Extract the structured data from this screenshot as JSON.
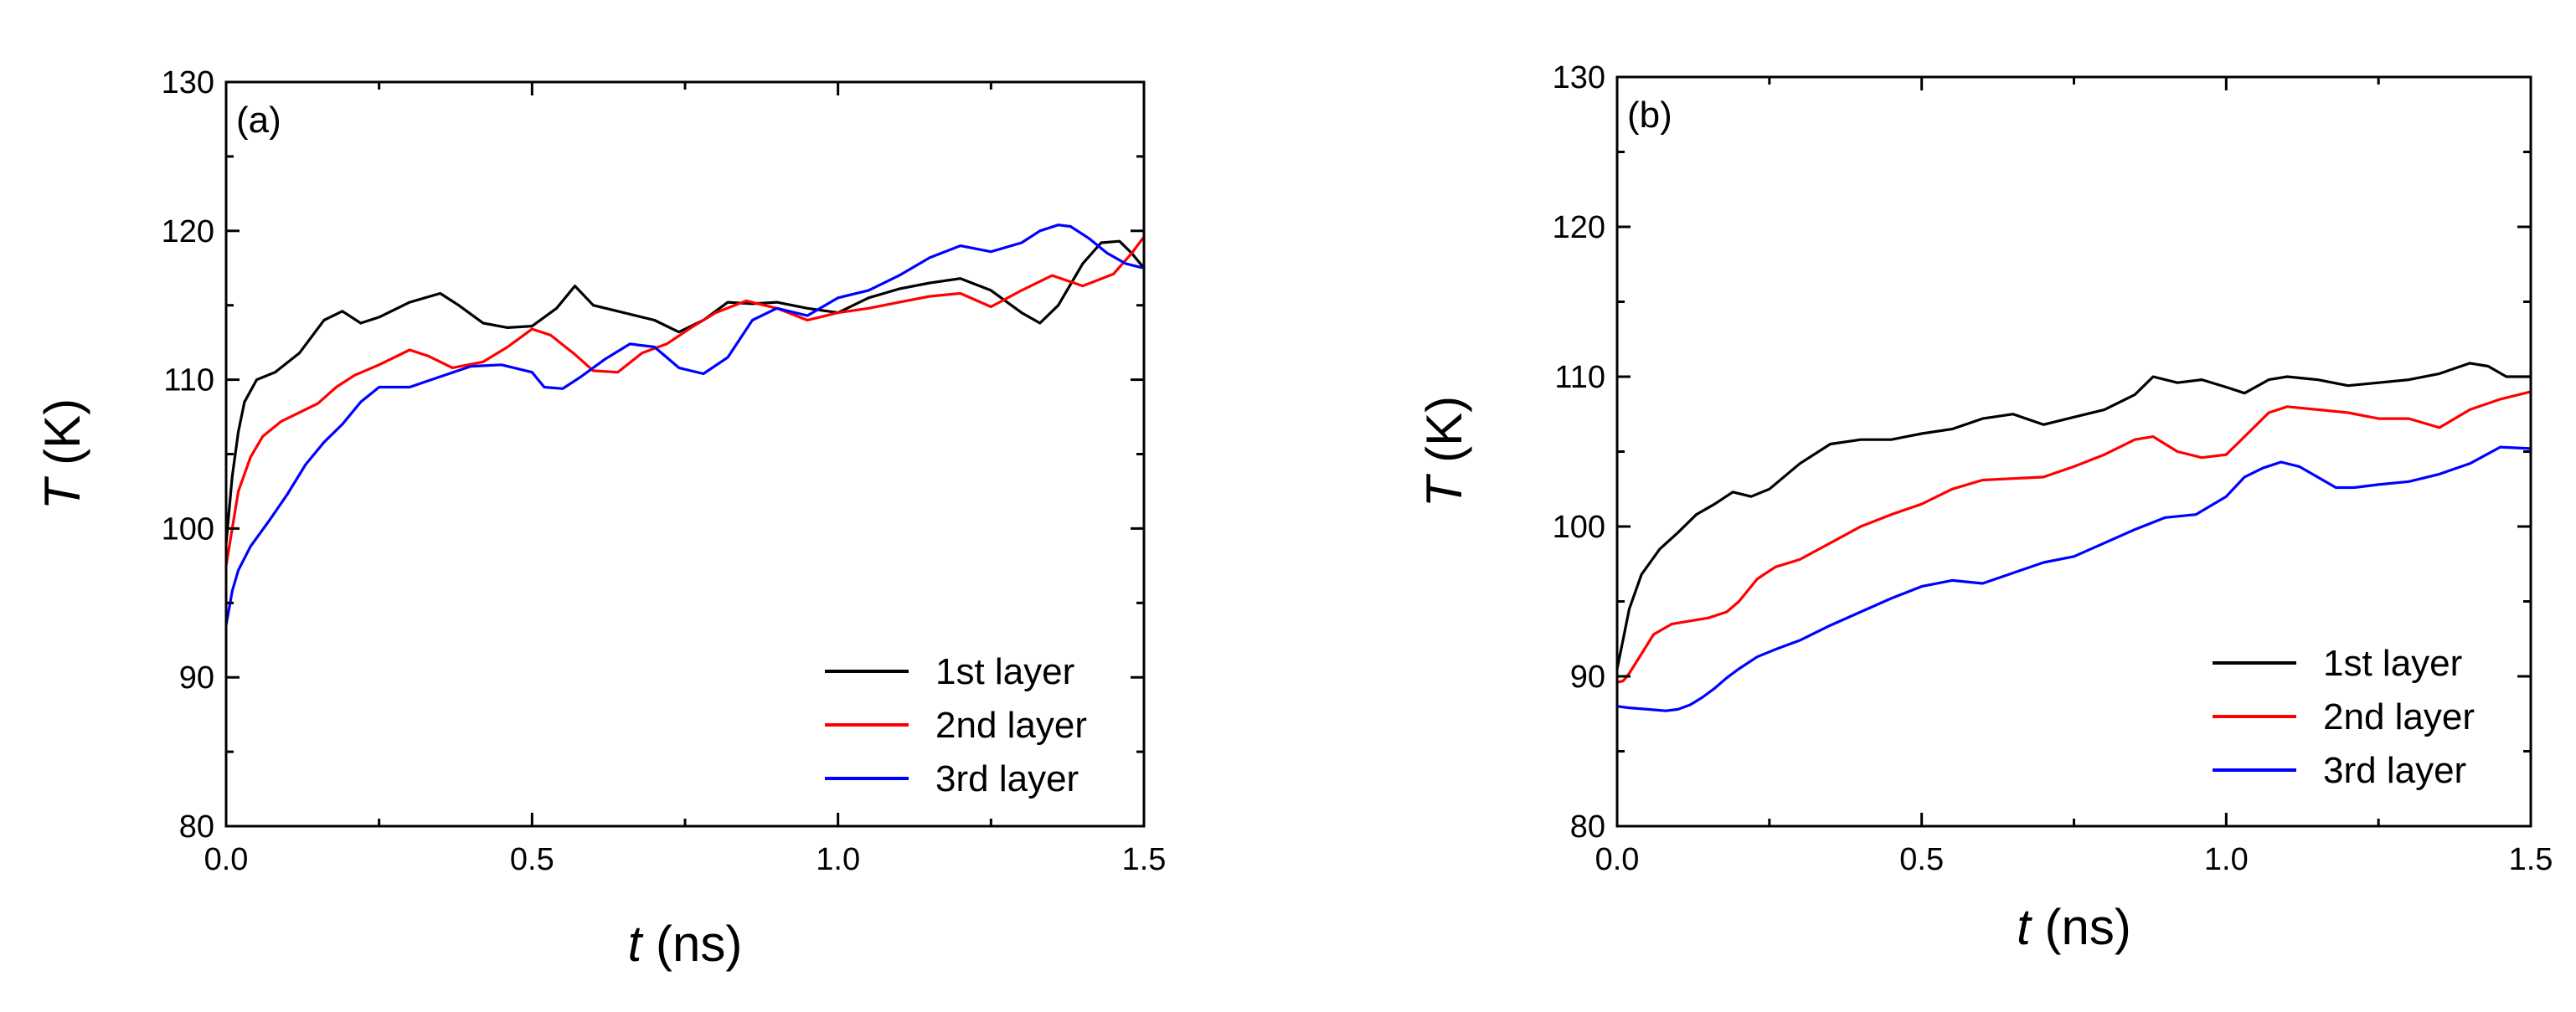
{
  "chart_data": [
    {
      "type": "line",
      "panel_label": "(a)",
      "xlabel_var": "t",
      "xlabel_unit": " (ns)",
      "ylabel_var": "T",
      "ylabel_unit": " (K)",
      "xlim": [
        0,
        1.5
      ],
      "ylim": [
        80,
        130
      ],
      "xticks": [
        0.0,
        0.5,
        1.0,
        1.5
      ],
      "xtick_labels": [
        "0.0",
        "0.5",
        "1.0",
        "1.5"
      ],
      "yticks": [
        80,
        90,
        100,
        110,
        120,
        130
      ],
      "ytick_labels": [
        "80",
        "90",
        "100",
        "110",
        "120",
        "130"
      ],
      "legend_position": "bottom-right",
      "grid": false,
      "series": [
        {
          "name": "1st layer",
          "color": "#000000",
          "x": [
            0,
            0.01,
            0.02,
            0.03,
            0.05,
            0.08,
            0.12,
            0.16,
            0.19,
            0.22,
            0.25,
            0.3,
            0.35,
            0.38,
            0.42,
            0.46,
            0.5,
            0.54,
            0.57,
            0.6,
            0.65,
            0.7,
            0.74,
            0.78,
            0.82,
            0.86,
            0.9,
            0.95,
            1.0,
            1.05,
            1.1,
            1.15,
            1.2,
            1.25,
            1.3,
            1.33,
            1.36,
            1.4,
            1.43,
            1.46,
            1.48,
            1.5
          ],
          "y": [
            99,
            103.5,
            106.5,
            108.5,
            110,
            110.5,
            111.8,
            114,
            114.6,
            113.8,
            114.2,
            115.2,
            115.8,
            115,
            113.8,
            113.5,
            113.6,
            114.8,
            116.3,
            115,
            114.5,
            114,
            113.2,
            114,
            115.2,
            115.1,
            115.2,
            114.8,
            114.5,
            115.5,
            116.1,
            116.5,
            116.8,
            116,
            114.5,
            113.8,
            115,
            117.8,
            119.2,
            119.3,
            118.5,
            117.5
          ]
        },
        {
          "name": "2nd layer",
          "color": "#ff0000",
          "x": [
            0,
            0.01,
            0.02,
            0.04,
            0.06,
            0.09,
            0.12,
            0.15,
            0.18,
            0.21,
            0.25,
            0.3,
            0.33,
            0.37,
            0.42,
            0.46,
            0.5,
            0.53,
            0.57,
            0.6,
            0.64,
            0.68,
            0.72,
            0.76,
            0.8,
            0.85,
            0.9,
            0.95,
            1.0,
            1.05,
            1.1,
            1.15,
            1.2,
            1.25,
            1.3,
            1.35,
            1.4,
            1.45,
            1.48,
            1.5
          ],
          "y": [
            97.5,
            100,
            102.5,
            104.8,
            106.2,
            107.2,
            107.8,
            108.4,
            109.5,
            110.3,
            111,
            112,
            111.6,
            110.8,
            111.2,
            112.2,
            113.4,
            113,
            111.7,
            110.6,
            110.5,
            111.8,
            112.4,
            113.5,
            114.5,
            115.3,
            114.8,
            114,
            114.5,
            114.8,
            115.2,
            115.6,
            115.8,
            114.9,
            116,
            117,
            116.3,
            117.1,
            118.5,
            119.6
          ]
        },
        {
          "name": "3rd layer",
          "color": "#0000ff",
          "x": [
            0,
            0.01,
            0.02,
            0.04,
            0.07,
            0.1,
            0.13,
            0.16,
            0.19,
            0.22,
            0.25,
            0.3,
            0.35,
            0.4,
            0.45,
            0.5,
            0.52,
            0.55,
            0.58,
            0.62,
            0.66,
            0.7,
            0.74,
            0.78,
            0.82,
            0.86,
            0.9,
            0.95,
            1.0,
            1.05,
            1.1,
            1.15,
            1.2,
            1.25,
            1.3,
            1.33,
            1.36,
            1.38,
            1.41,
            1.44,
            1.47,
            1.5
          ],
          "y": [
            93.5,
            95.8,
            97.2,
            98.8,
            100.5,
            102.3,
            104.3,
            105.8,
            107,
            108.5,
            109.5,
            109.5,
            110.2,
            110.9,
            111,
            110.5,
            109.5,
            109.4,
            110.2,
            111.4,
            112.4,
            112.2,
            110.8,
            110.4,
            111.5,
            114,
            114.8,
            114.3,
            115.5,
            116,
            117,
            118.2,
            119,
            118.6,
            119.2,
            120,
            120.4,
            120.3,
            119.5,
            118.5,
            117.8,
            117.5
          ]
        }
      ]
    },
    {
      "type": "line",
      "panel_label": "(b)",
      "xlabel_var": "t",
      "xlabel_unit": " (ns)",
      "ylabel_var": "T",
      "ylabel_unit": " (K)",
      "xlim": [
        0,
        1.5
      ],
      "ylim": [
        80,
        130
      ],
      "xticks": [
        0.0,
        0.5,
        1.0,
        1.5
      ],
      "xtick_labels": [
        "0.0",
        "0.5",
        "1.0",
        "1.5"
      ],
      "yticks": [
        80,
        90,
        100,
        110,
        120,
        130
      ],
      "ytick_labels": [
        "80",
        "90",
        "100",
        "110",
        "120",
        "130"
      ],
      "legend_position": "bottom-right",
      "grid": false,
      "series": [
        {
          "name": "1st layer",
          "color": "#000000",
          "x": [
            0,
            0.01,
            0.02,
            0.04,
            0.07,
            0.1,
            0.13,
            0.16,
            0.19,
            0.22,
            0.25,
            0.3,
            0.35,
            0.4,
            0.45,
            0.5,
            0.55,
            0.6,
            0.65,
            0.7,
            0.75,
            0.8,
            0.85,
            0.88,
            0.92,
            0.96,
            1.0,
            1.03,
            1.07,
            1.1,
            1.15,
            1.2,
            1.25,
            1.3,
            1.35,
            1.4,
            1.43,
            1.46,
            1.5
          ],
          "y": [
            90.5,
            92.5,
            94.5,
            96.8,
            98.5,
            99.6,
            100.8,
            101.5,
            102.3,
            102,
            102.5,
            104.2,
            105.5,
            105.8,
            105.8,
            106.2,
            106.5,
            107.2,
            107.5,
            106.8,
            107.3,
            107.8,
            108.8,
            110,
            109.6,
            109.8,
            109.3,
            108.9,
            109.8,
            110,
            109.8,
            109.4,
            109.6,
            109.8,
            110.2,
            110.9,
            110.7,
            110,
            110
          ]
        },
        {
          "name": "2nd layer",
          "color": "#ff0000",
          "x": [
            0,
            0.01,
            0.02,
            0.04,
            0.06,
            0.09,
            0.12,
            0.15,
            0.18,
            0.2,
            0.23,
            0.26,
            0.3,
            0.35,
            0.4,
            0.45,
            0.5,
            0.55,
            0.6,
            0.65,
            0.7,
            0.75,
            0.8,
            0.85,
            0.88,
            0.92,
            0.96,
            1.0,
            1.03,
            1.07,
            1.1,
            1.15,
            1.2,
            1.25,
            1.3,
            1.35,
            1.4,
            1.45,
            1.5
          ],
          "y": [
            89.6,
            89.7,
            90.2,
            91.5,
            92.8,
            93.5,
            93.7,
            93.9,
            94.3,
            95,
            96.5,
            97.3,
            97.8,
            98.9,
            100,
            100.8,
            101.5,
            102.5,
            103.1,
            103.2,
            103.3,
            104,
            104.8,
            105.8,
            106,
            105,
            104.6,
            104.8,
            106,
            107.6,
            108,
            107.8,
            107.6,
            107.2,
            107.2,
            106.6,
            107.8,
            108.5,
            109
          ]
        },
        {
          "name": "3rd layer",
          "color": "#0000ff",
          "x": [
            0,
            0.02,
            0.05,
            0.08,
            0.1,
            0.12,
            0.14,
            0.16,
            0.18,
            0.2,
            0.23,
            0.26,
            0.3,
            0.35,
            0.4,
            0.45,
            0.5,
            0.55,
            0.6,
            0.65,
            0.7,
            0.75,
            0.8,
            0.85,
            0.9,
            0.95,
            1.0,
            1.03,
            1.06,
            1.09,
            1.12,
            1.15,
            1.18,
            1.21,
            1.25,
            1.3,
            1.35,
            1.4,
            1.45,
            1.5
          ],
          "y": [
            88,
            87.9,
            87.8,
            87.7,
            87.8,
            88.1,
            88.6,
            89.2,
            89.9,
            90.5,
            91.3,
            91.8,
            92.4,
            93.4,
            94.3,
            95.2,
            96,
            96.4,
            96.2,
            96.9,
            97.6,
            98,
            98.9,
            99.8,
            100.6,
            100.8,
            102,
            103.3,
            103.9,
            104.3,
            104,
            103.3,
            102.6,
            102.6,
            102.8,
            103,
            103.5,
            104.2,
            105.3,
            105.2
          ]
        }
      ]
    }
  ]
}
